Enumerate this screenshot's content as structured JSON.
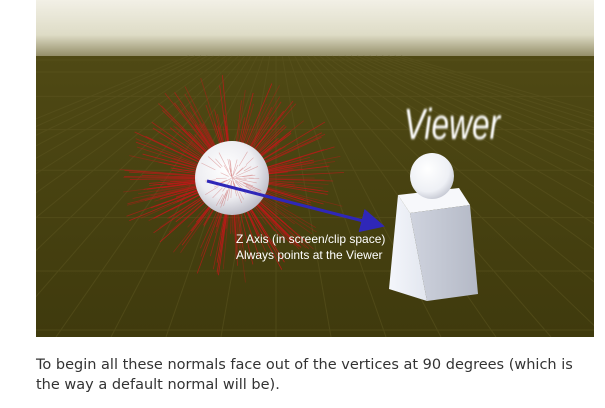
{
  "figure": {
    "viewer_label": "Viewer",
    "annotation_line1": "Z Axis (in screen/clip space)",
    "annotation_line2": "Always points at the Viewer",
    "colors": {
      "sky": "#e9e7d6",
      "ground": "#4a4412",
      "normals": "#c01818",
      "arrow": "#2f27b8",
      "annotation_text": "#ffffff"
    }
  },
  "caption": {
    "text": "To begin all these normals face out of the vertices at 90 degrees (which is the way a default normal will be)."
  }
}
